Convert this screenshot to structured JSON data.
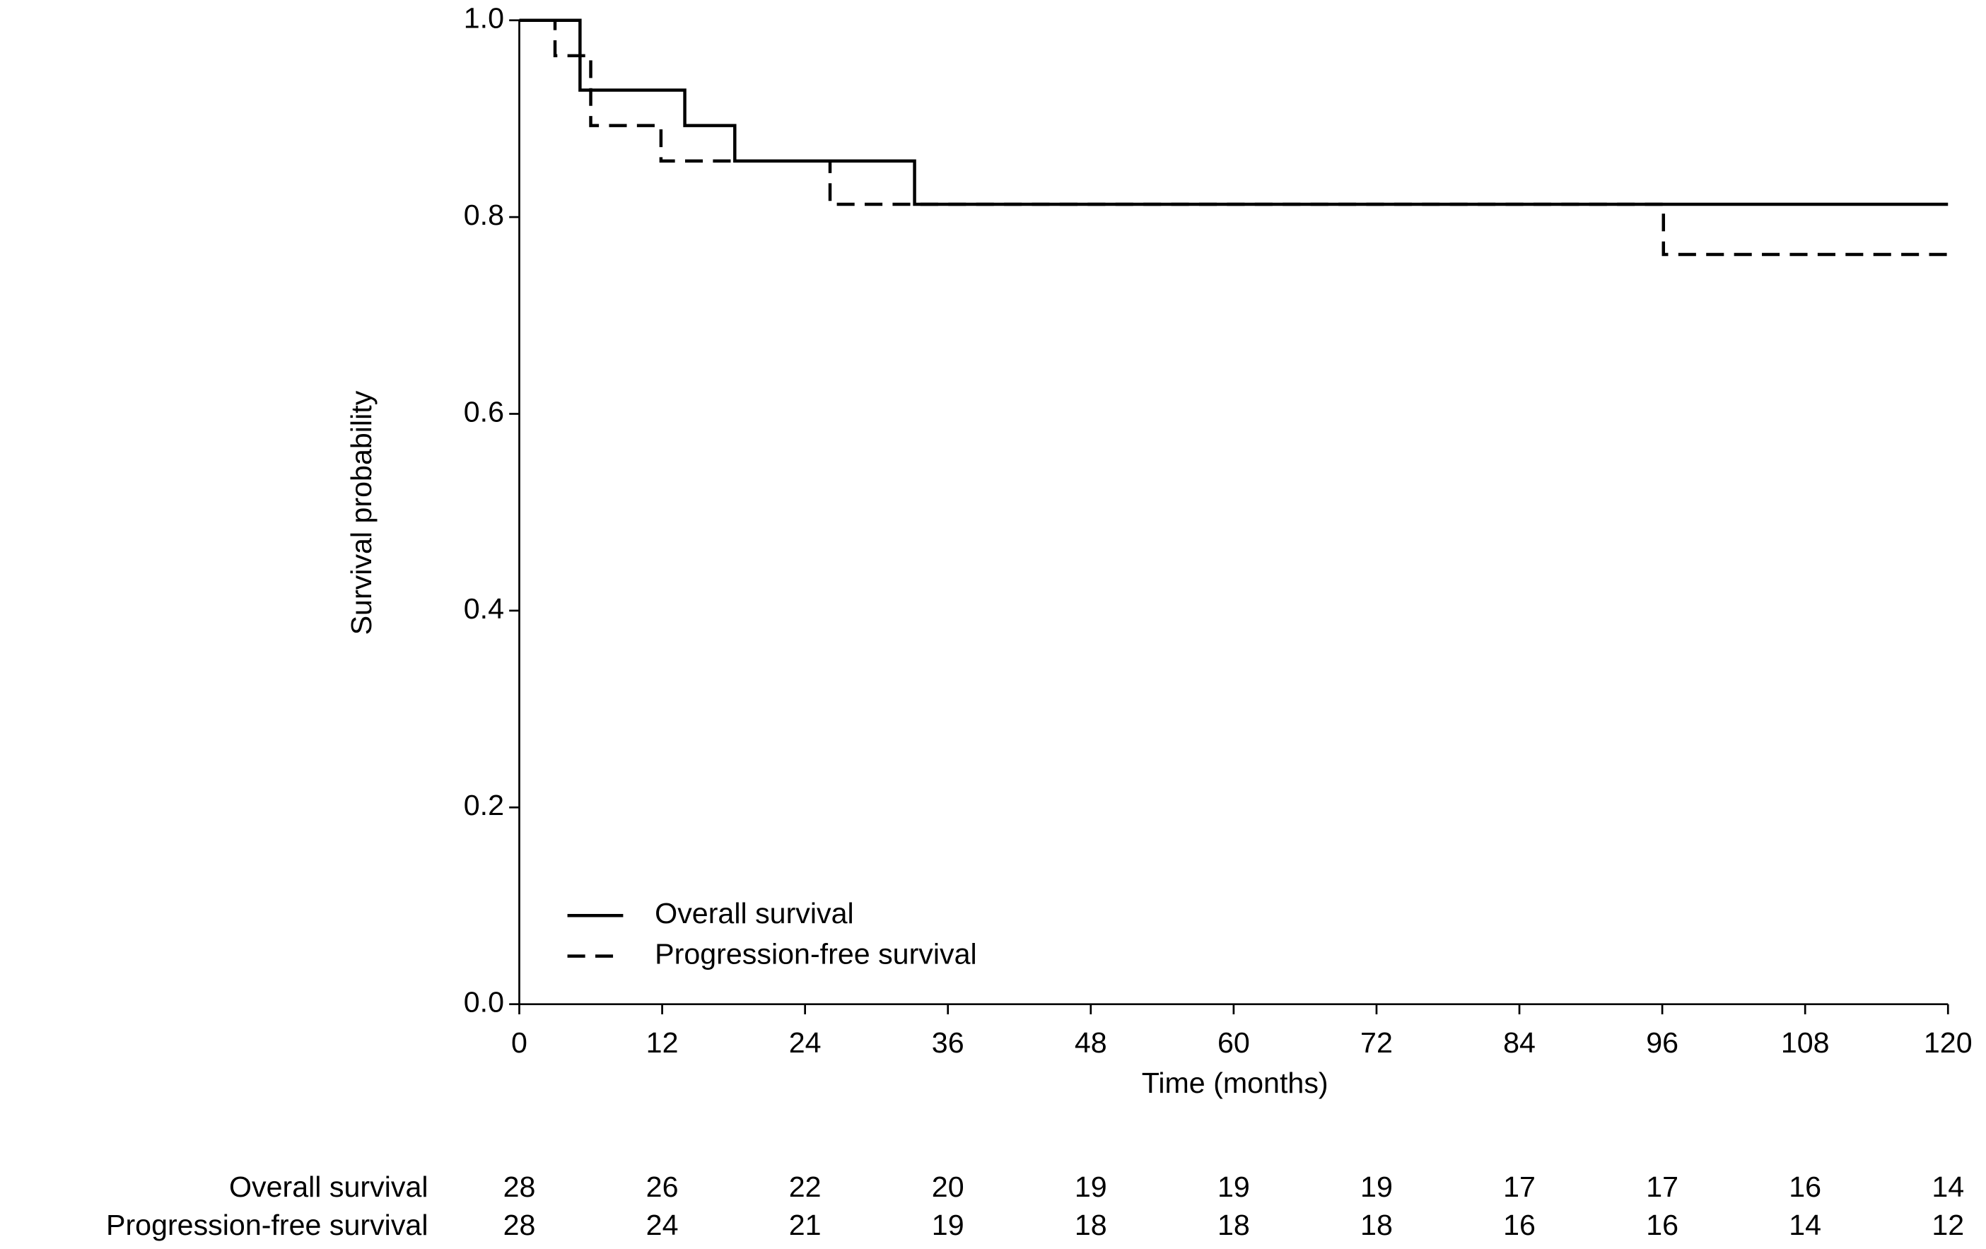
{
  "chart_data": {
    "type": "line",
    "step": true,
    "x_label": "Time (months)",
    "y_label": "Survival probability",
    "xlim": [
      0,
      120
    ],
    "ylim": [
      0,
      1
    ],
    "xticks": [
      0,
      12,
      24,
      36,
      48,
      60,
      72,
      84,
      96,
      108,
      120
    ],
    "yticks": [
      {
        "value": 0,
        "label": "0.0"
      },
      {
        "value": 0.2,
        "label": "0.2"
      },
      {
        "value": 0.4,
        "label": "0.4"
      },
      {
        "value": 0.6,
        "label": "0.6"
      },
      {
        "value": 0.8,
        "label": "0.8"
      },
      {
        "value": 1,
        "label": "1.0"
      }
    ],
    "legend": "bottom-left",
    "series": [
      {
        "name": "Overall survival",
        "color": "#000000",
        "dash": "solid",
        "x": [
          0,
          5.1,
          13.9,
          18.1,
          33.2,
          120
        ],
        "values": [
          1,
          0.929,
          0.893,
          0.857,
          0.813,
          0.813
        ],
        "at_risk": [
          28,
          26,
          22,
          20,
          19,
          19,
          19,
          17,
          17,
          16,
          14
        ]
      },
      {
        "name": "Progression-free survival",
        "color": "#000000",
        "dash": "dashed",
        "x": [
          0,
          3.0,
          6.0,
          11.9,
          26.1,
          96.1,
          120
        ],
        "values": [
          1,
          0.964,
          0.893,
          0.857,
          0.813,
          0.762,
          0.762
        ],
        "at_risk": [
          28,
          24,
          21,
          19,
          18,
          18,
          18,
          16,
          16,
          14,
          12
        ]
      }
    ]
  }
}
